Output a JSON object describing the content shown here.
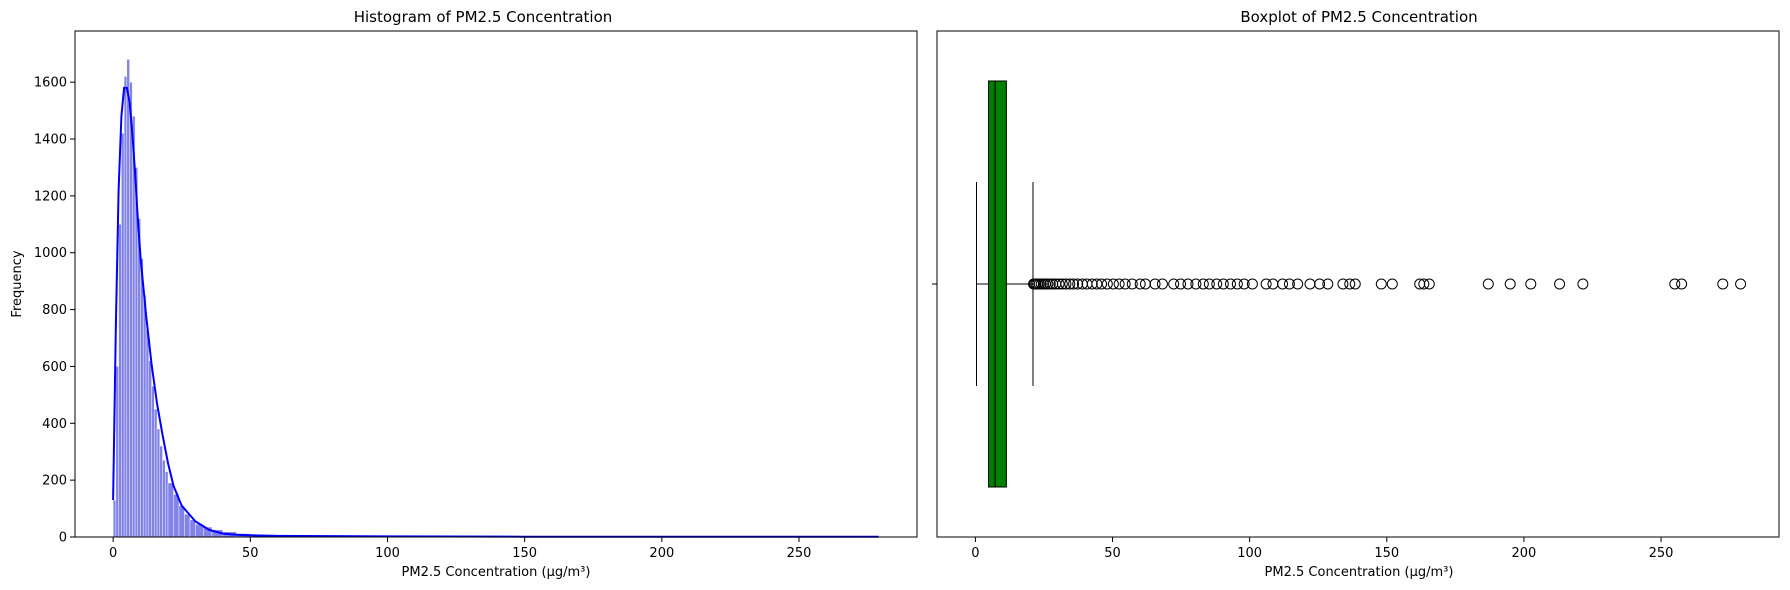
{
  "chart_data": [
    {
      "type": "bar",
      "subtype": "histogram-with-kde",
      "title": "Histogram of PM2.5 Concentration",
      "xlabel": "PM2.5 Concentration (µg/m³)",
      "ylabel": "Frequency",
      "xlim": [
        -13.9,
        293.0
      ],
      "ylim": [
        0,
        1780
      ],
      "xticks": [
        0,
        50,
        100,
        150,
        200,
        250
      ],
      "yticks": [
        0,
        200,
        400,
        600,
        800,
        1000,
        1200,
        1400,
        1600
      ],
      "bar_color": "#7b7be6",
      "line_color": "#0000ff",
      "bins": {
        "x": [
          0,
          1,
          2,
          3,
          4,
          5,
          6,
          7,
          8,
          9,
          10,
          11,
          12,
          13,
          14,
          15,
          16,
          17,
          18,
          19,
          20,
          22,
          24,
          26,
          28,
          30,
          33,
          36,
          40,
          45,
          50,
          60,
          70,
          80,
          100,
          150,
          200,
          250
        ],
        "counts": [
          130,
          600,
          1100,
          1420,
          1620,
          1680,
          1600,
          1480,
          1300,
          1120,
          980,
          850,
          730,
          620,
          530,
          450,
          380,
          320,
          270,
          230,
          190,
          150,
          110,
          80,
          60,
          45,
          35,
          25,
          18,
          12,
          8,
          5,
          4,
          3,
          2,
          2,
          1,
          1
        ]
      },
      "kde": {
        "x": [
          0,
          1,
          2,
          3,
          4,
          5,
          6,
          7,
          8,
          9,
          10,
          12,
          14,
          16,
          18,
          20,
          22,
          25,
          30,
          35,
          40,
          45,
          50,
          60,
          80,
          100,
          150,
          200,
          250,
          279
        ],
        "y": [
          130,
          750,
          1220,
          1480,
          1580,
          1580,
          1530,
          1420,
          1280,
          1120,
          980,
          780,
          610,
          470,
          360,
          260,
          180,
          110,
          55,
          25,
          12,
          8,
          6,
          4,
          3,
          2,
          1,
          1,
          1,
          1
        ]
      }
    },
    {
      "type": "boxplot",
      "title": "Boxplot of PM2.5 Concentration",
      "xlabel": "PM2.5 Concentration (µg/m³)",
      "xlim": [
        -14.0,
        293.0
      ],
      "xticks": [
        0,
        50,
        100,
        150,
        200,
        250
      ],
      "box_color": "#008000",
      "whisker_low": 0.4,
      "q1": 4.8,
      "median": 7.2,
      "q3": 11.3,
      "whisker_high": 21.0,
      "outliers": [
        21.2,
        21.6,
        22.1,
        22.7,
        23.3,
        24.0,
        24.8,
        25.5,
        26.4,
        27.3,
        28.2,
        29.3,
        30.5,
        31.7,
        33.0,
        34.4,
        35.8,
        37.3,
        39.0,
        40.7,
        42.6,
        44.3,
        46.0,
        48.1,
        50.3,
        52.4,
        54.6,
        57.2,
        60.1,
        62.0,
        65.5,
        68.2,
        72.3,
        74.8,
        77.5,
        80.4,
        83.1,
        85.3,
        88.0,
        90.4,
        93.0,
        95.5,
        98.0,
        101.0,
        106.0,
        108.5,
        112.0,
        114.5,
        117.5,
        122.0,
        125.5,
        128.5,
        134.0,
        136.5,
        138.5,
        148.0,
        152.0,
        162.0,
        163.5,
        165.5,
        187.0,
        195.0,
        202.5,
        213.0,
        221.5,
        255.0,
        257.5,
        272.5,
        279.0
      ]
    }
  ]
}
